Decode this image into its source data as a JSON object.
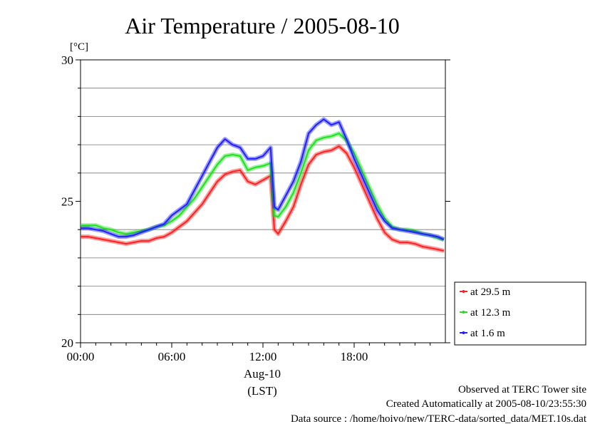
{
  "chart_data": {
    "type": "line",
    "title": "Air Temperature / 2005-08-10",
    "ylabel": "[°C]",
    "xlabel": "(LST)",
    "date_label": "Aug-10",
    "ylim": [
      20,
      30
    ],
    "xlim": [
      0,
      24
    ],
    "y_tick_labels": [
      "30",
      "25",
      "20"
    ],
    "y_ticks": [
      30,
      25,
      20
    ],
    "y_grid": [
      21,
      22,
      23,
      24,
      26,
      27,
      28,
      29
    ],
    "x_tick_labels": [
      "00:00",
      "06:00",
      "12:00",
      "18:00"
    ],
    "x_ticks": [
      0,
      6,
      12,
      18
    ],
    "grid": true,
    "legend_position": "bottom-right",
    "series": [
      {
        "name": "at 29.5 m",
        "color": "#ff2020",
        "x": [
          0,
          0.5,
          1,
          1.5,
          2,
          2.5,
          3,
          3.5,
          4,
          4.5,
          5,
          5.5,
          6,
          6.5,
          7,
          7.5,
          8,
          8.5,
          9,
          9.5,
          10,
          10.5,
          11,
          11.5,
          12,
          12.5,
          12.75,
          13,
          13.5,
          14,
          14.5,
          15,
          15.5,
          16,
          16.5,
          17,
          17.5,
          18,
          18.5,
          19,
          19.5,
          20,
          20.5,
          21,
          21.5,
          22,
          22.5,
          23,
          23.5,
          23.9
        ],
        "values": [
          23.75,
          23.75,
          23.7,
          23.65,
          23.6,
          23.55,
          23.5,
          23.55,
          23.6,
          23.6,
          23.7,
          23.75,
          23.9,
          24.1,
          24.3,
          24.6,
          24.9,
          25.3,
          25.7,
          25.95,
          26.05,
          26.1,
          25.7,
          25.6,
          25.75,
          25.9,
          24.0,
          23.85,
          24.3,
          24.8,
          25.6,
          26.3,
          26.65,
          26.75,
          26.8,
          26.95,
          26.7,
          26.2,
          25.6,
          25.0,
          24.4,
          23.9,
          23.65,
          23.55,
          23.55,
          23.5,
          23.4,
          23.35,
          23.3,
          23.25
        ]
      },
      {
        "name": "at 12.3 m",
        "color": "#20e020",
        "x": [
          0,
          0.5,
          1,
          1.5,
          2,
          2.5,
          3,
          3.5,
          4,
          4.5,
          5,
          5.5,
          6,
          6.5,
          7,
          7.5,
          8,
          8.5,
          9,
          9.5,
          10,
          10.5,
          11,
          11.5,
          12,
          12.5,
          12.75,
          13,
          13.5,
          14,
          14.5,
          15,
          15.5,
          16,
          16.5,
          17,
          17.5,
          18,
          18.5,
          19,
          19.5,
          20,
          20.5,
          21,
          21.5,
          22,
          22.5,
          23,
          23.5,
          23.9
        ],
        "values": [
          24.15,
          24.15,
          24.15,
          24.05,
          24.0,
          23.9,
          23.85,
          23.9,
          23.95,
          24.0,
          24.1,
          24.15,
          24.3,
          24.5,
          24.8,
          25.1,
          25.5,
          25.9,
          26.3,
          26.6,
          26.65,
          26.6,
          26.1,
          26.2,
          26.25,
          26.35,
          24.5,
          24.45,
          24.8,
          25.3,
          26.0,
          26.8,
          27.15,
          27.25,
          27.3,
          27.4,
          27.15,
          26.7,
          26.1,
          25.5,
          24.9,
          24.4,
          24.1,
          24.0,
          24.0,
          23.95,
          23.85,
          23.8,
          23.7,
          23.65
        ]
      },
      {
        "name": "at 1.6 m",
        "color": "#2020ff",
        "x": [
          0,
          0.5,
          1,
          1.5,
          2,
          2.5,
          3,
          3.5,
          4,
          4.5,
          5,
          5.5,
          6,
          6.5,
          7,
          7.5,
          8,
          8.5,
          9,
          9.5,
          10,
          10.5,
          11,
          11.5,
          12,
          12.5,
          12.75,
          13,
          13.5,
          14,
          14.5,
          15,
          15.5,
          16,
          16.5,
          17,
          17.5,
          18,
          18.5,
          19,
          19.5,
          20,
          20.5,
          21,
          21.5,
          22,
          22.5,
          23,
          23.5,
          23.9
        ],
        "values": [
          24.05,
          24.05,
          24.0,
          23.95,
          23.85,
          23.75,
          23.75,
          23.8,
          23.9,
          24.0,
          24.1,
          24.2,
          24.5,
          24.7,
          24.9,
          25.4,
          25.9,
          26.4,
          26.9,
          27.2,
          27.0,
          26.9,
          26.5,
          26.5,
          26.6,
          26.9,
          24.8,
          24.7,
          25.2,
          25.7,
          26.4,
          27.4,
          27.7,
          27.9,
          27.7,
          27.8,
          27.2,
          26.5,
          25.9,
          25.3,
          24.7,
          24.3,
          24.05,
          24.0,
          23.95,
          23.9,
          23.85,
          23.8,
          23.75,
          23.65
        ]
      }
    ]
  },
  "footer": {
    "line1": "Observed at TERC Tower site",
    "line2": "Created Automatically at 2005-08-10/23:55:30",
    "line3": "Data source : /home/hoivo/new/TERC-data/sorted_data/MET.10s.dat"
  }
}
